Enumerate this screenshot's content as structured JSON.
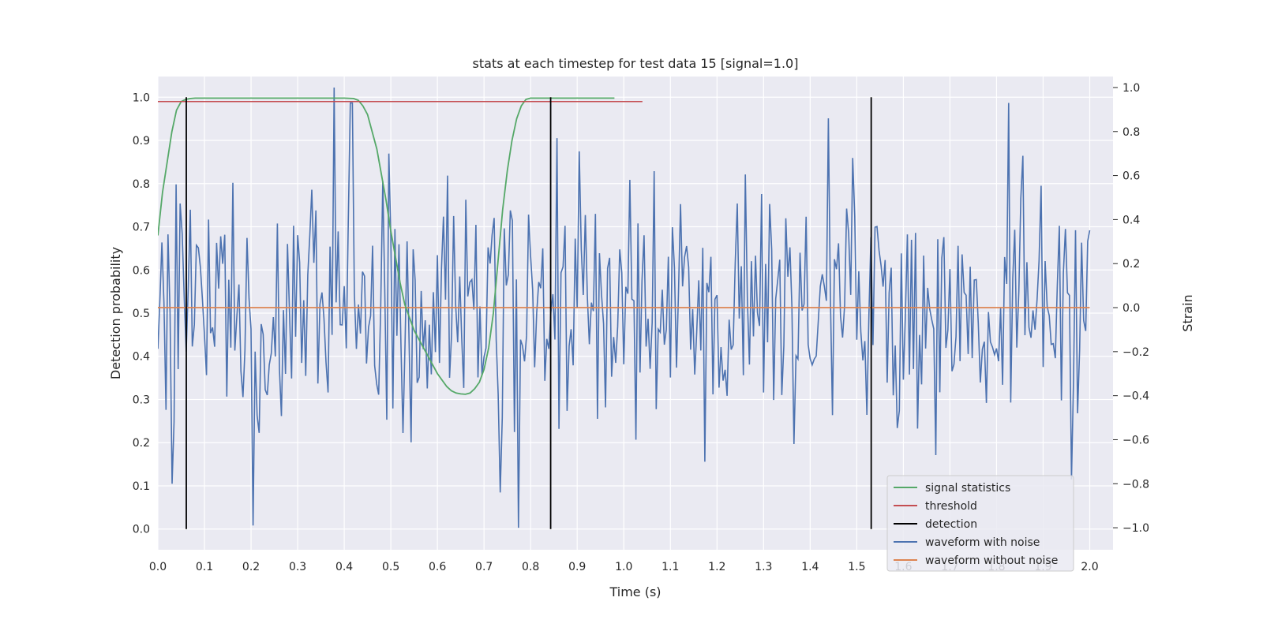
{
  "chart_data": {
    "type": "line",
    "title": "stats at each timestep for test data 15 [signal=1.0]",
    "xlabel": "Time (s)",
    "ylabel": "Detection probability",
    "ylabel_right": "Strain",
    "xlim": [
      0.0,
      2.05
    ],
    "ylim": [
      -0.048,
      1.048
    ],
    "ylim_right": [
      -1.1,
      1.05
    ],
    "x_ticks": [
      "0.0",
      "0.1",
      "0.2",
      "0.3",
      "0.4",
      "0.5",
      "0.6",
      "0.7",
      "0.8",
      "0.9",
      "1.0",
      "1.1",
      "1.2",
      "1.3",
      "1.4",
      "1.5",
      "1.6",
      "1.7",
      "1.8",
      "1.9",
      "2.0"
    ],
    "y_ticks": [
      "0.0",
      "0.1",
      "0.2",
      "0.3",
      "0.4",
      "0.5",
      "0.6",
      "0.7",
      "0.8",
      "0.9",
      "1.0"
    ],
    "y_ticks_right": [
      "−1.0",
      "−0.8",
      "−0.6",
      "−0.4",
      "−0.2",
      "0.0",
      "0.2",
      "0.4",
      "0.6",
      "0.8",
      "1.0"
    ],
    "grid": true,
    "legend_position": "bottom-right",
    "series": [
      {
        "name": "signal statistics",
        "color": "#55a868",
        "axis": "left",
        "x": [
          0.0,
          0.01,
          0.02,
          0.03,
          0.04,
          0.05,
          0.06,
          0.07,
          0.08,
          0.1,
          0.15,
          0.2,
          0.25,
          0.3,
          0.35,
          0.4,
          0.42,
          0.43,
          0.44,
          0.45,
          0.46,
          0.47,
          0.48,
          0.49,
          0.5,
          0.51,
          0.52,
          0.53,
          0.54,
          0.55,
          0.56,
          0.57,
          0.58,
          0.59,
          0.6,
          0.61,
          0.62,
          0.63,
          0.64,
          0.65,
          0.66,
          0.67,
          0.68,
          0.69,
          0.7,
          0.71,
          0.72,
          0.73,
          0.74,
          0.75,
          0.76,
          0.77,
          0.78,
          0.79,
          0.8,
          0.82,
          0.85,
          0.9,
          0.95,
          0.98
        ],
        "y": [
          0.68,
          0.78,
          0.85,
          0.92,
          0.97,
          0.99,
          0.995,
          0.997,
          0.998,
          0.998,
          0.998,
          0.998,
          0.998,
          0.998,
          0.998,
          0.998,
          0.997,
          0.993,
          0.98,
          0.96,
          0.92,
          0.88,
          0.82,
          0.76,
          0.69,
          0.63,
          0.57,
          0.52,
          0.49,
          0.46,
          0.44,
          0.42,
          0.4,
          0.38,
          0.36,
          0.345,
          0.33,
          0.32,
          0.315,
          0.313,
          0.312,
          0.315,
          0.325,
          0.34,
          0.37,
          0.42,
          0.5,
          0.62,
          0.74,
          0.83,
          0.9,
          0.95,
          0.98,
          0.995,
          0.998,
          0.998,
          0.998,
          0.998,
          0.998,
          0.998
        ]
      },
      {
        "name": "threshold",
        "color": "#c44e52",
        "axis": "left",
        "x": [
          0.0,
          1.04
        ],
        "y": [
          0.99,
          0.99
        ]
      },
      {
        "name": "detection",
        "color": "#000000",
        "axis": "left",
        "type": "vlines",
        "x": [
          0.061,
          0.843,
          1.531
        ],
        "y_range": [
          0.0,
          1.0
        ]
      },
      {
        "name": "waveform with noise",
        "color": "#4c72b0",
        "axis": "right",
        "peaks": [
          {
            "x": 0.032,
            "y": -0.8
          },
          {
            "x": 0.04,
            "y": 0.56
          },
          {
            "x": 0.11,
            "y": 0.4
          },
          {
            "x": 0.205,
            "y": -0.99
          },
          {
            "x": 0.38,
            "y": 1.0
          },
          {
            "x": 0.415,
            "y": 0.93
          },
          {
            "x": 0.495,
            "y": 0.7
          },
          {
            "x": 0.62,
            "y": 0.6
          },
          {
            "x": 0.735,
            "y": -0.84
          },
          {
            "x": 0.775,
            "y": -1.0
          },
          {
            "x": 0.855,
            "y": 0.77
          },
          {
            "x": 0.905,
            "y": 0.71
          },
          {
            "x": 1.025,
            "y": -0.6
          },
          {
            "x": 1.065,
            "y": 0.62
          },
          {
            "x": 1.175,
            "y": -0.7
          },
          {
            "x": 1.365,
            "y": -0.62
          },
          {
            "x": 1.44,
            "y": 0.86
          },
          {
            "x": 1.49,
            "y": 0.68
          },
          {
            "x": 1.67,
            "y": -0.67
          },
          {
            "x": 1.825,
            "y": 0.93
          },
          {
            "x": 1.855,
            "y": 0.69
          },
          {
            "x": 1.96,
            "y": -0.78
          }
        ]
      },
      {
        "name": "waveform without noise",
        "color": "#dd8452",
        "axis": "right",
        "x": [
          0.0,
          2.0
        ],
        "y": [
          0.0,
          0.0
        ]
      }
    ]
  }
}
